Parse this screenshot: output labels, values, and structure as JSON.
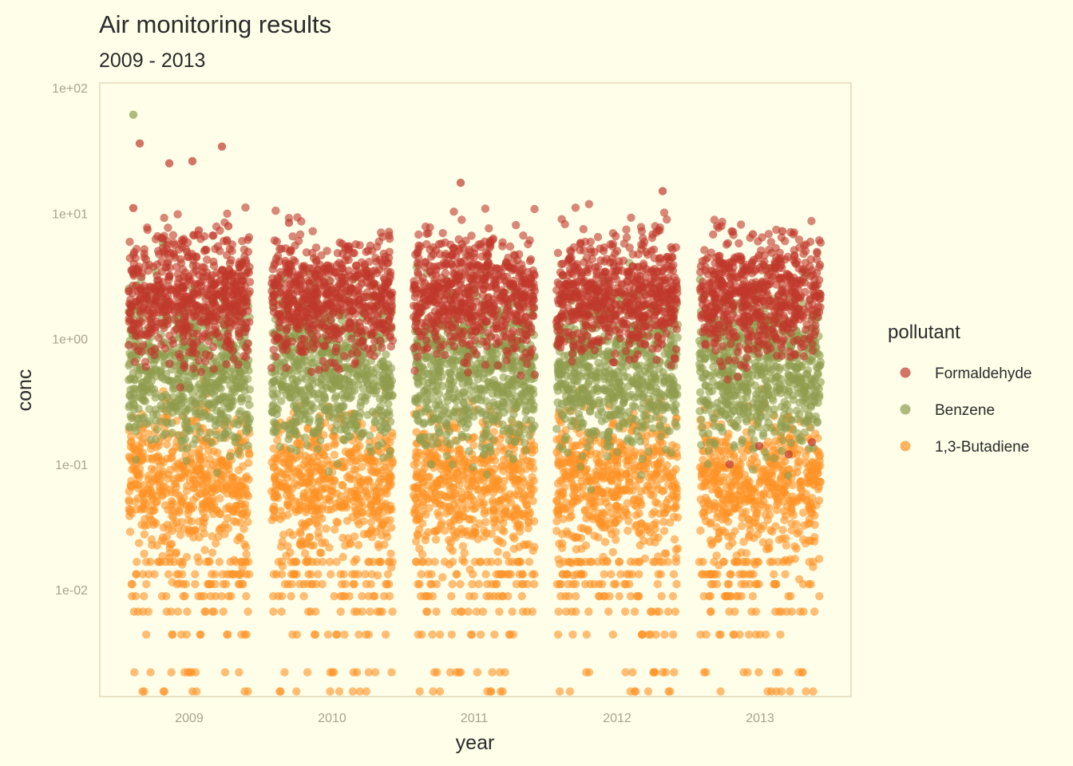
{
  "colors": {
    "background": "#fefee9",
    "panel_border": "#ebe2c6",
    "text": "#2b2b2b",
    "tick_text": "#a8a391"
  },
  "chart_data": {
    "type": "scatter",
    "title": "Air monitoring results",
    "subtitle": "2009 - 2013",
    "xlabel": "year",
    "ylabel": "conc",
    "x_categories": [
      "2009",
      "2010",
      "2011",
      "2012",
      "2013"
    ],
    "y_scale": "log10",
    "y_ticks": [
      0.01,
      0.1,
      1,
      10,
      100
    ],
    "y_tick_labels": [
      "1e-02",
      "1e-01",
      "1e+00",
      "1e+01",
      "1e+02"
    ],
    "ylim": [
      0.0015,
      100
    ],
    "jitter": true,
    "grid": false,
    "legend": {
      "title": "pollutant",
      "position": "right"
    },
    "series": [
      {
        "name": "Formaldehyde",
        "color": "#c0392b",
        "typical_range": [
          0.9,
          5.5
        ],
        "outliers": [
          {
            "year": "2009",
            "value": 11
          },
          {
            "year": "2009",
            "value": 6.3
          },
          {
            "year": "2009",
            "value": 26
          },
          {
            "year": "2009",
            "value": 34
          },
          {
            "year": "2009",
            "value": 36
          },
          {
            "year": "2009",
            "value": 25
          },
          {
            "year": "2009",
            "value": 7.3
          },
          {
            "year": "2009",
            "value": 7.9
          },
          {
            "year": "2010",
            "value": 8.4
          },
          {
            "year": "2011",
            "value": 17.5
          },
          {
            "year": "2011",
            "value": 6
          },
          {
            "year": "2012",
            "value": 15
          },
          {
            "year": "2012",
            "value": 5.8
          },
          {
            "year": "2013",
            "value": 6.8
          },
          {
            "year": "2013",
            "value": 7.2
          },
          {
            "year": "2013",
            "value": 0.15
          },
          {
            "year": "2013",
            "value": 0.1
          },
          {
            "year": "2013",
            "value": 0.14
          },
          {
            "year": "2013",
            "value": 0.12
          }
        ]
      },
      {
        "name": "Benzene",
        "color": "#8f9c4f",
        "typical_range": [
          0.18,
          1.6
        ],
        "outliers": [
          {
            "year": "2009",
            "value": 61
          },
          {
            "year": "2009",
            "value": 5.8
          },
          {
            "year": "2009",
            "value": 2.5
          },
          {
            "year": "2009",
            "value": 2.4
          },
          {
            "year": "2010",
            "value": 3
          },
          {
            "year": "2010",
            "value": 2.4
          },
          {
            "year": "2011",
            "value": 0.12
          },
          {
            "year": "2011",
            "value": 0.11
          },
          {
            "year": "2011",
            "value": 0.1
          },
          {
            "year": "2012",
            "value": 2.9
          },
          {
            "year": "2012",
            "value": 2.3
          },
          {
            "year": "2013",
            "value": 3.2
          }
        ]
      },
      {
        "name": "1,3-Butadiene",
        "color": "#ff9326",
        "typical_range": [
          0.025,
          0.2
        ],
        "discrete_low_values": [
          0.0167,
          0.0133,
          0.0111,
          0.0089,
          0.0067,
          0.0044,
          0.0022,
          0.00155
        ]
      }
    ]
  }
}
